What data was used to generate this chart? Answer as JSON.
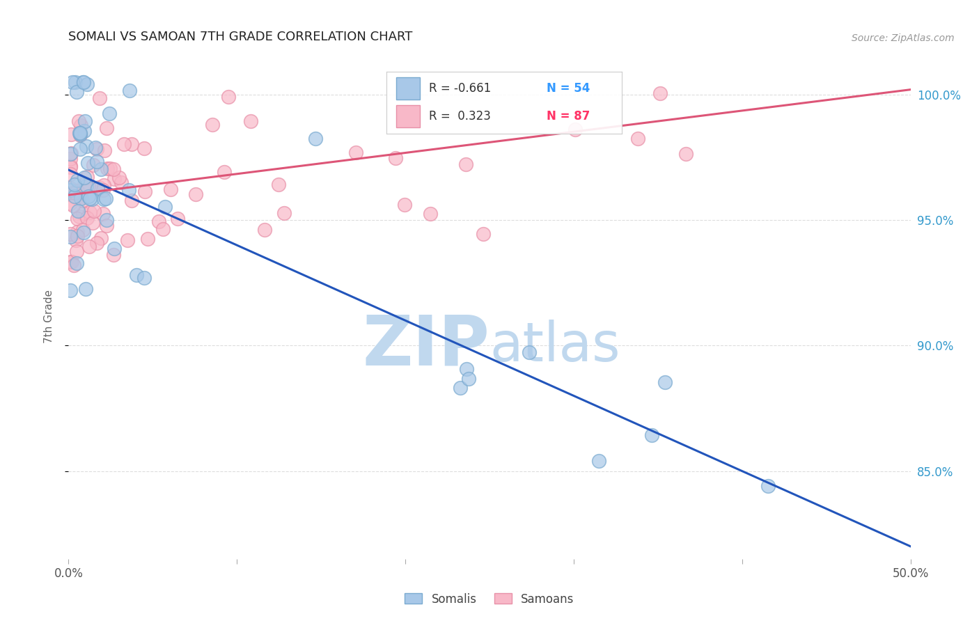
{
  "title": "SOMALI VS SAMOAN 7TH GRADE CORRELATION CHART",
  "source": "Source: ZipAtlas.com",
  "ylabel": "7th Grade",
  "ytick_labels": [
    "100.0%",
    "95.0%",
    "90.0%",
    "85.0%"
  ],
  "ytick_values": [
    1.0,
    0.95,
    0.9,
    0.85
  ],
  "xlim": [
    0.0,
    0.5
  ],
  "ylim": [
    0.815,
    1.008
  ],
  "somali_color": "#A8C8E8",
  "somali_edge_color": "#7AAAD0",
  "samoan_color": "#F8B8C8",
  "samoan_edge_color": "#E890A8",
  "somali_line_color": "#2255BB",
  "samoan_line_color": "#DD5577",
  "R_somali": -0.661,
  "N_somali": 54,
  "R_samoan": 0.323,
  "N_samoan": 87,
  "watermark_ZIP_color": "#C0D8EE",
  "watermark_atlas_color": "#C0D8EE",
  "background_color": "#FFFFFF",
  "grid_color": "#DDDDDD",
  "somali_line_x": [
    0.0,
    0.5
  ],
  "somali_line_y": [
    0.97,
    0.82
  ],
  "samoan_line_x": [
    0.0,
    0.5
  ],
  "samoan_line_y": [
    0.96,
    1.002
  ]
}
